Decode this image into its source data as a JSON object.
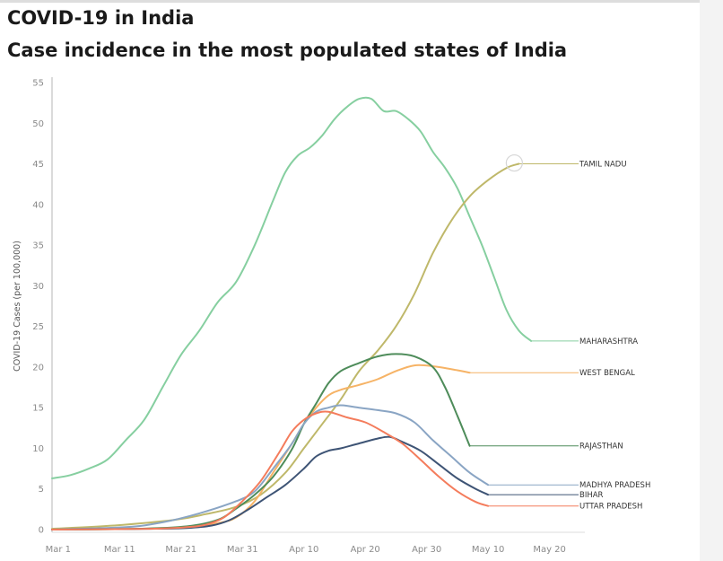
{
  "title": "COVID-19 in India",
  "subtitle": "Case incidence in the most populated states of India",
  "chart_data": {
    "type": "line",
    "title": "COVID-19 in India",
    "subtitle": "Case incidence in the most populated states of India",
    "ylabel": "COVID-19 Cases (per 100,000)",
    "xlabel": "",
    "ylim": [
      0,
      55
    ],
    "yticks": [
      0,
      5,
      10,
      15,
      20,
      25,
      30,
      35,
      40,
      45,
      50,
      55
    ],
    "xlim": [
      0,
      85
    ],
    "xticks": [
      {
        "day": 1,
        "label": "Mar 1"
      },
      {
        "day": 11,
        "label": "Mar 11"
      },
      {
        "day": 21,
        "label": "Mar 21"
      },
      {
        "day": 31,
        "label": "Mar 31"
      },
      {
        "day": 41,
        "label": "Apr 10"
      },
      {
        "day": 51,
        "label": "Apr 20"
      },
      {
        "day": 61,
        "label": "Apr 30"
      },
      {
        "day": 71,
        "label": "May 10"
      },
      {
        "day": 81,
        "label": "May 20"
      }
    ],
    "grid": false,
    "legend": "end-of-line labels",
    "series": [
      {
        "name": "MAHARASHTRA",
        "color": "#86cfa0",
        "points": [
          [
            0,
            6.3
          ],
          [
            3,
            6.7
          ],
          [
            6,
            7.5
          ],
          [
            9,
            8.6
          ],
          [
            12,
            11
          ],
          [
            15,
            13.5
          ],
          [
            18,
            17.5
          ],
          [
            21,
            21.5
          ],
          [
            24,
            24.5
          ],
          [
            27,
            28
          ],
          [
            30,
            30.5
          ],
          [
            33,
            35
          ],
          [
            36,
            40.5
          ],
          [
            38,
            44
          ],
          [
            40,
            46
          ],
          [
            42,
            47
          ],
          [
            44,
            48.5
          ],
          [
            46,
            50.5
          ],
          [
            48,
            52
          ],
          [
            50,
            53
          ],
          [
            52,
            53
          ],
          [
            54,
            51.5
          ],
          [
            56,
            51.5
          ],
          [
            58,
            50.5
          ],
          [
            60,
            49
          ],
          [
            62,
            46.5
          ],
          [
            64,
            44.5
          ],
          [
            66,
            42
          ],
          [
            68,
            38.5
          ],
          [
            70,
            35
          ],
          [
            72,
            31
          ],
          [
            74,
            27
          ],
          [
            76,
            24.5
          ],
          [
            78,
            23.2
          ]
        ]
      },
      {
        "name": "TAMIL NADU",
        "color": "#bfb86a",
        "points": [
          [
            0,
            0.1
          ],
          [
            10,
            0.5
          ],
          [
            20,
            1.2
          ],
          [
            25,
            1.9
          ],
          [
            30,
            2.8
          ],
          [
            34,
            4.3
          ],
          [
            38,
            7
          ],
          [
            41,
            10
          ],
          [
            44,
            13
          ],
          [
            47,
            16
          ],
          [
            50,
            19.5
          ],
          [
            53,
            22
          ],
          [
            56,
            25
          ],
          [
            59,
            29
          ],
          [
            62,
            34
          ],
          [
            65,
            38
          ],
          [
            68,
            41
          ],
          [
            71,
            43
          ],
          [
            74,
            44.5
          ],
          [
            76,
            45
          ]
        ]
      },
      {
        "name": "WEST BENGAL",
        "color": "#f6b366",
        "points": [
          [
            0,
            0
          ],
          [
            14,
            0.1
          ],
          [
            22,
            0.3
          ],
          [
            27,
            0.8
          ],
          [
            30,
            1.5
          ],
          [
            33,
            3.5
          ],
          [
            36,
            7
          ],
          [
            39,
            10.5
          ],
          [
            41,
            13
          ],
          [
            43,
            15
          ],
          [
            45,
            16.5
          ],
          [
            47,
            17.2
          ],
          [
            50,
            17.8
          ],
          [
            53,
            18.5
          ],
          [
            56,
            19.5
          ],
          [
            59,
            20.2
          ],
          [
            62,
            20.1
          ],
          [
            66,
            19.6
          ],
          [
            68,
            19.3
          ]
        ]
      },
      {
        "name": "RAJASTHAN",
        "color": "#4e8c5a",
        "points": [
          [
            0,
            0
          ],
          [
            14,
            0.1
          ],
          [
            22,
            0.4
          ],
          [
            27,
            1.2
          ],
          [
            30,
            2.6
          ],
          [
            33,
            4.3
          ],
          [
            36,
            6.5
          ],
          [
            39,
            9.8
          ],
          [
            41,
            13
          ],
          [
            43,
            15.5
          ],
          [
            45,
            18
          ],
          [
            47,
            19.5
          ],
          [
            50,
            20.5
          ],
          [
            53,
            21.3
          ],
          [
            56,
            21.6
          ],
          [
            59,
            21.3
          ],
          [
            62,
            20
          ],
          [
            64,
            17.5
          ],
          [
            66,
            14
          ],
          [
            68,
            10.3
          ]
        ]
      },
      {
        "name": "MADHYA PRADESH",
        "color": "#8aa5c4",
        "points": [
          [
            0,
            0
          ],
          [
            12,
            0.3
          ],
          [
            18,
            0.9
          ],
          [
            24,
            2
          ],
          [
            30,
            3.5
          ],
          [
            33,
            4.7
          ],
          [
            36,
            7.5
          ],
          [
            39,
            10.5
          ],
          [
            41,
            13
          ],
          [
            43,
            14.5
          ],
          [
            45,
            15
          ],
          [
            47,
            15.3
          ],
          [
            50,
            15
          ],
          [
            53,
            14.7
          ],
          [
            56,
            14.3
          ],
          [
            59,
            13.2
          ],
          [
            62,
            11
          ],
          [
            65,
            9
          ],
          [
            68,
            7
          ],
          [
            71,
            5.5
          ]
        ]
      },
      {
        "name": "BIHAR",
        "color": "#3e5475",
        "points": [
          [
            0,
            0
          ],
          [
            16,
            0.1
          ],
          [
            22,
            0.2
          ],
          [
            26,
            0.5
          ],
          [
            29,
            1.2
          ],
          [
            32,
            2.5
          ],
          [
            35,
            4
          ],
          [
            38,
            5.5
          ],
          [
            41,
            7.5
          ],
          [
            43,
            9
          ],
          [
            45,
            9.7
          ],
          [
            47,
            10
          ],
          [
            50,
            10.6
          ],
          [
            53,
            11.2
          ],
          [
            55,
            11.4
          ],
          [
            57,
            10.8
          ],
          [
            60,
            9.7
          ],
          [
            63,
            8
          ],
          [
            66,
            6.3
          ],
          [
            69,
            5
          ],
          [
            71,
            4.3
          ]
        ]
      },
      {
        "name": "UTTAR PRADESH",
        "color": "#f47c5c",
        "points": [
          [
            0,
            0
          ],
          [
            16,
            0.1
          ],
          [
            22,
            0.3
          ],
          [
            25,
            0.6
          ],
          [
            28,
            1.5
          ],
          [
            31,
            3.5
          ],
          [
            34,
            6
          ],
          [
            37,
            9.5
          ],
          [
            39,
            12
          ],
          [
            41,
            13.5
          ],
          [
            43,
            14.3
          ],
          [
            45,
            14.5
          ],
          [
            48,
            13.8
          ],
          [
            51,
            13.2
          ],
          [
            54,
            12
          ],
          [
            57,
            10.6
          ],
          [
            60,
            8.6
          ],
          [
            63,
            6.5
          ],
          [
            66,
            4.7
          ],
          [
            69,
            3.4
          ],
          [
            71,
            2.9
          ]
        ]
      }
    ],
    "annotation": {
      "type": "circle-marker",
      "series": "TAMIL NADU",
      "at_end": true
    }
  }
}
